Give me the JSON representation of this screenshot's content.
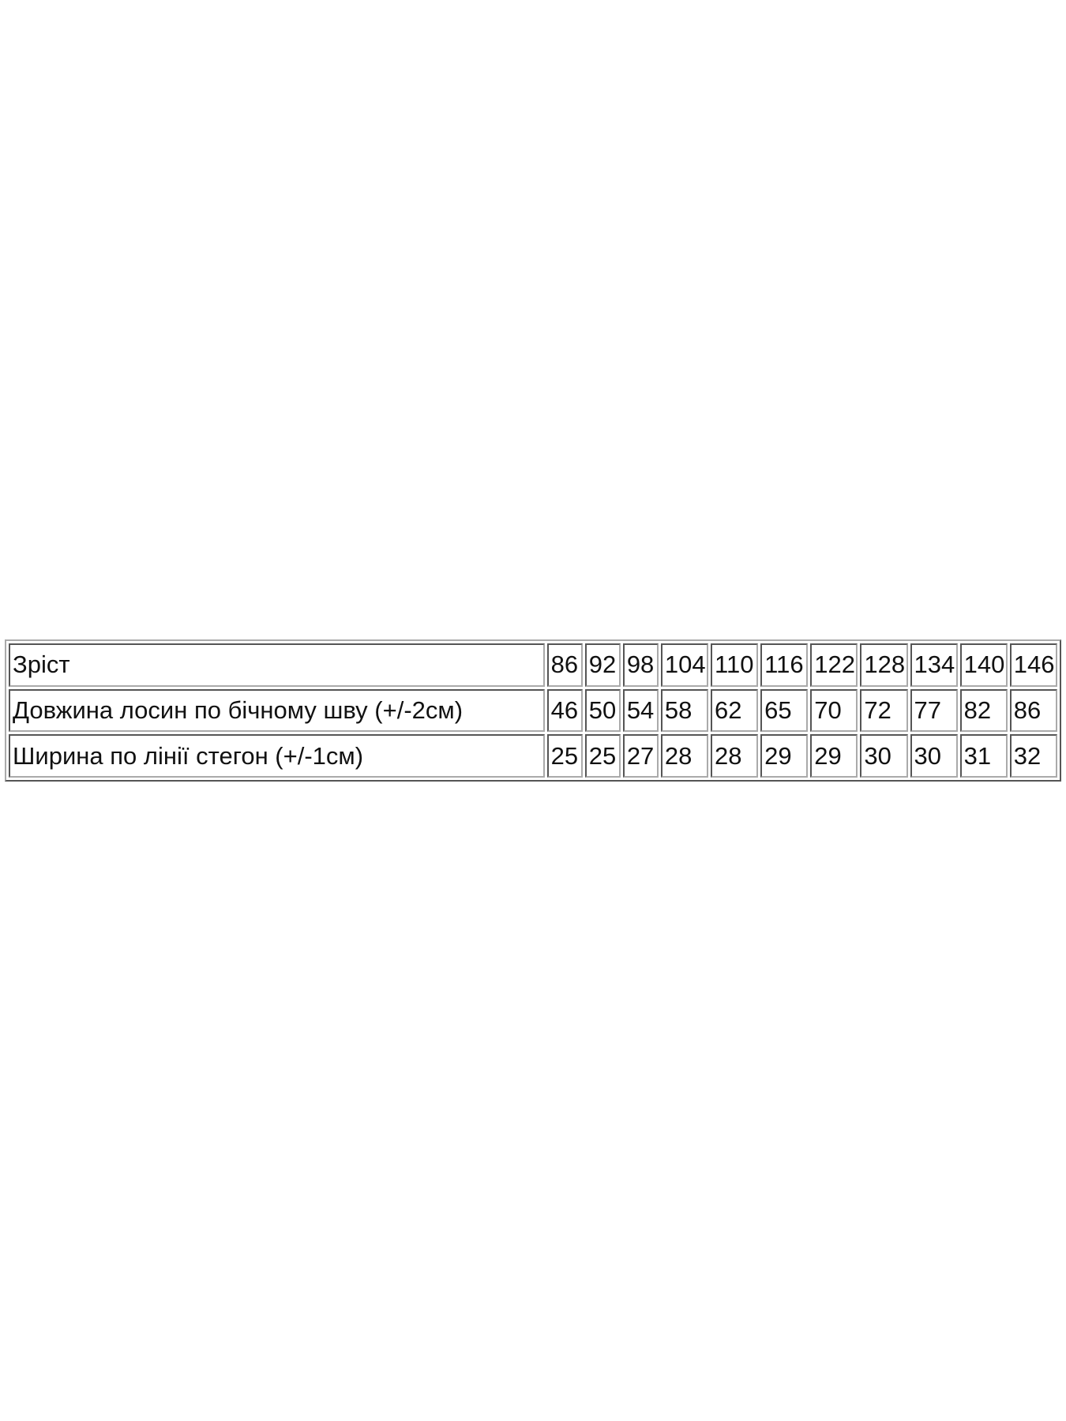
{
  "table": {
    "rows": [
      {
        "label": "Зріст",
        "values": [
          "86",
          "92",
          "98",
          "104",
          "110",
          "116",
          "122",
          "128",
          "134",
          "140",
          "146"
        ]
      },
      {
        "label": "Довжина лосин по бічному шву (+/-2см)",
        "values": [
          "46",
          "50",
          "54",
          "58",
          "62",
          "65",
          "70",
          "72",
          "77",
          "82",
          "86"
        ]
      },
      {
        "label": "Ширина по лінії стегон (+/-1см)",
        "values": [
          "25",
          "25",
          "27",
          "28",
          "28",
          "29",
          "29",
          "30",
          "30",
          "31",
          "32"
        ]
      }
    ]
  }
}
